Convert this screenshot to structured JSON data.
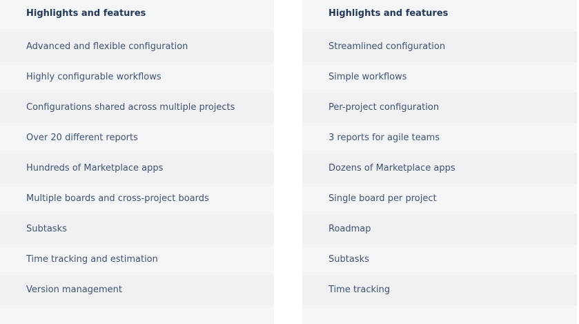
{
  "columns": [
    {
      "header": "Highlights and features",
      "items": [
        "Advanced and flexible configuration",
        "Highly configurable workflows",
        "Configurations shared across multiple projects",
        "Over 20 different reports",
        "Hundreds of Marketplace apps",
        "Multiple boards and cross-project boards",
        "Subtasks",
        "Time tracking and estimation",
        "Version management"
      ]
    },
    {
      "header": "Highlights and features",
      "items": [
        "Streamlined configuration",
        "Simple workflows",
        "Per-project configuration",
        "3 reports for agile teams",
        "Dozens of Marketplace apps",
        "Single board per project",
        "Roadmap",
        "Subtasks",
        "Time tracking"
      ]
    }
  ]
}
